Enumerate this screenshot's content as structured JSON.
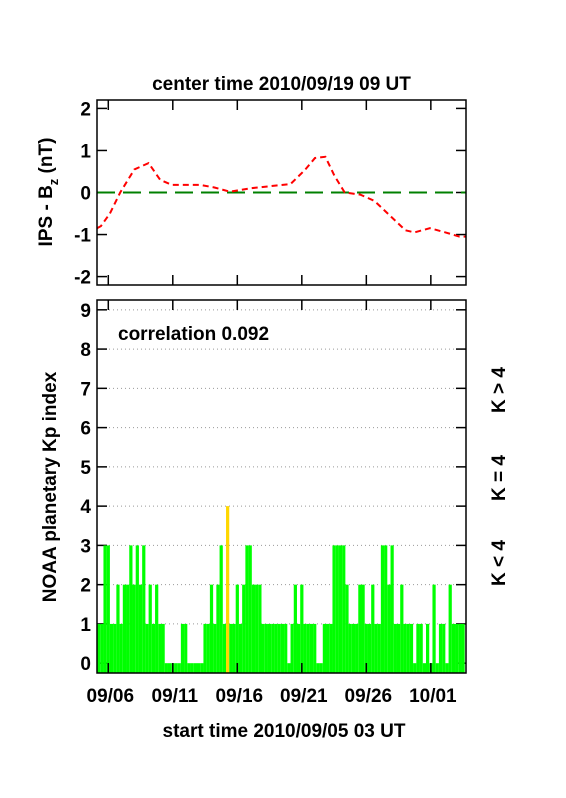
{
  "chart_data": [
    {
      "type": "line",
      "title": "center time 2010/09/19 09 UT",
      "ylabel": [
        "IPS - B",
        "z",
        " (nT)"
      ],
      "xlim": [
        0,
        28.6
      ],
      "ylim": [
        -2.2,
        2.2
      ],
      "yticks": [
        -2,
        -1,
        0,
        1,
        2
      ],
      "hline": {
        "value": 0,
        "color": "#008000"
      },
      "x": [
        0,
        0.3,
        1.0,
        1.8,
        2.9,
        4.0,
        4.9,
        5.8,
        8.0,
        9.1,
        10.3,
        11.9,
        13.4,
        15.0,
        16.1,
        16.9,
        17.7,
        18.4,
        19.2,
        20.4,
        21.5,
        22.7,
        23.9,
        24.6,
        25.8,
        27.0,
        28.1,
        28.6
      ],
      "series": [
        {
          "color": "#ff0000",
          "values": [
            -0.85,
            -0.8,
            -0.5,
            0.0,
            0.55,
            0.7,
            0.3,
            0.18,
            0.18,
            0.12,
            0.02,
            0.1,
            0.15,
            0.2,
            0.53,
            0.82,
            0.85,
            0.4,
            0.0,
            -0.05,
            -0.2,
            -0.55,
            -0.9,
            -0.95,
            -0.85,
            -0.95,
            -1.05,
            -1.05
          ]
        }
      ]
    },
    {
      "type": "bar",
      "annotation": "correlation 0.092",
      "ylabel": "NOAA planetary Kp index",
      "xlabel": "start time 2010/09/05 03 UT",
      "xlim": [
        0,
        28.6
      ],
      "ylim": [
        -0.25,
        9.25
      ],
      "yticks": [
        0,
        1,
        2,
        3,
        4,
        5,
        6,
        7,
        8,
        9
      ],
      "grid": true,
      "xticks": [
        {
          "value": 0.875,
          "label": "09/06"
        },
        {
          "value": 5.875,
          "label": "09/11"
        },
        {
          "value": 10.875,
          "label": "09/16"
        },
        {
          "value": 15.875,
          "label": "09/21"
        },
        {
          "value": 20.875,
          "label": "09/26"
        },
        {
          "value": 25.875,
          "label": "10/01"
        }
      ],
      "threshold": 4,
      "legend": [
        {
          "name": "K > 4",
          "color": "#ff0000"
        },
        {
          "name": "K = 4",
          "color": "#ffd700"
        },
        {
          "name": "K < 4",
          "color": "#00ff00"
        }
      ],
      "bar_width": 0.25,
      "x": [
        0,
        0.25,
        0.5,
        0.75,
        1,
        1.25,
        1.5,
        1.75,
        2,
        2.25,
        2.5,
        2.75,
        3,
        3.25,
        3.5,
        3.75,
        4,
        4.25,
        4.5,
        4.75,
        5,
        5.25,
        5.5,
        5.75,
        6,
        6.25,
        6.5,
        6.75,
        7,
        7.25,
        7.5,
        7.75,
        8,
        8.25,
        8.5,
        8.75,
        9,
        9.25,
        9.5,
        9.75,
        10,
        10.25,
        10.5,
        10.75,
        11,
        11.25,
        11.5,
        11.75,
        12,
        12.25,
        12.5,
        12.75,
        13,
        13.25,
        13.5,
        13.75,
        14,
        14.25,
        14.5,
        14.75,
        15,
        15.25,
        15.5,
        15.75,
        16,
        16.25,
        16.5,
        16.75,
        17,
        17.25,
        17.5,
        17.75,
        18,
        18.25,
        18.5,
        18.75,
        19,
        19.25,
        19.5,
        19.75,
        20,
        20.25,
        20.5,
        20.75,
        21,
        21.25,
        21.5,
        21.75,
        22,
        22.25,
        22.5,
        22.75,
        23,
        23.25,
        23.5,
        23.75,
        24,
        24.25,
        24.5,
        24.75,
        25,
        25.25,
        25.5,
        25.75,
        26,
        26.25,
        26.5,
        26.75,
        27,
        27.25,
        27.5,
        27.75,
        28,
        28.25
      ],
      "values": [
        1,
        1,
        3,
        3,
        1,
        1,
        2,
        1,
        2,
        2,
        3,
        2,
        3,
        2,
        3,
        1,
        2,
        1,
        2,
        1,
        1,
        0,
        0,
        0,
        0,
        0,
        1,
        1,
        0,
        0,
        0,
        0,
        0,
        1,
        1,
        2,
        1,
        2,
        3,
        1,
        4,
        1,
        1,
        2,
        1,
        2,
        3,
        3,
        2,
        2,
        2,
        1,
        1,
        1,
        1,
        1,
        1,
        1,
        1,
        0,
        1,
        2,
        1,
        2,
        1,
        1,
        1,
        1,
        0,
        0,
        1,
        1,
        1,
        3,
        3,
        3,
        3,
        2,
        1,
        1,
        1,
        2,
        2,
        1,
        1,
        2,
        1,
        1,
        3,
        3,
        2,
        3,
        1,
        1,
        2,
        1,
        1,
        1,
        0,
        1,
        1,
        0,
        1,
        0,
        2,
        0,
        1,
        1,
        0,
        2,
        1,
        1,
        1,
        1
      ]
    }
  ]
}
